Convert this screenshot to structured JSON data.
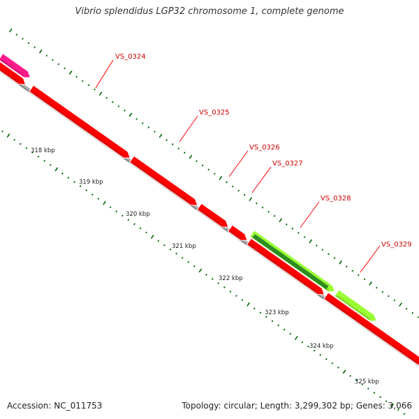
{
  "title": "Vibrio splendidus LGP32 chromosome 1, complete genome",
  "footer": {
    "accession_label": "Accession: NC_011753",
    "summary_label": "Topology: circular; Length: 3,299,302 bp; Genes: 3,066"
  },
  "colors": {
    "cds": "#ff0000",
    "cds_alt": "#ff1a8c",
    "highlight_gene": "#99ff33",
    "highlight_gene_inner": "#2e8b22",
    "backbone": "#888888",
    "tick": "#006400",
    "label_line": "#ff0000"
  },
  "map": {
    "kbp_labels": [
      "318 kbp",
      "319 kbp",
      "320 kbp",
      "321 kbp",
      "322 kbp",
      "323 kbp",
      "324 kbp",
      "325 kbp"
    ],
    "gene_labels": [
      "VS_0324",
      "VS_0325",
      "VS_0326",
      "VS_0327",
      "VS_0328",
      "VS_0329"
    ]
  }
}
